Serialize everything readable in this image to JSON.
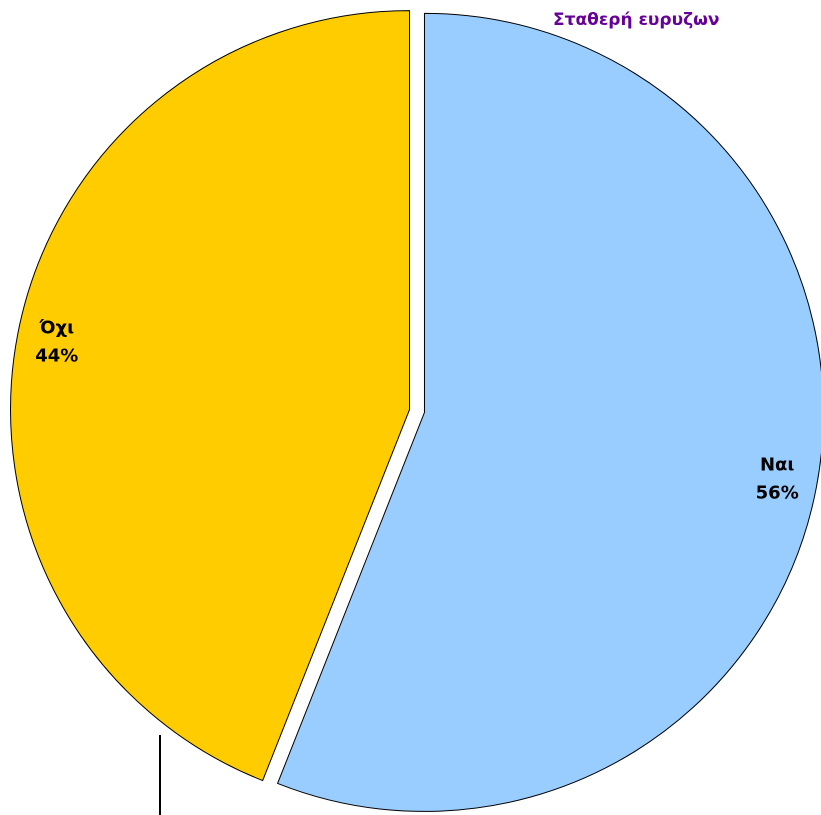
{
  "chart_data": {
    "type": "pie",
    "title": "Σταθερή ευρυζων",
    "categories": [
      "Ναι",
      "Όχι"
    ],
    "values": [
      56,
      44
    ],
    "value_labels": [
      "56%",
      "44%"
    ],
    "colors": [
      "#99ccff",
      "#ffcc00"
    ]
  }
}
